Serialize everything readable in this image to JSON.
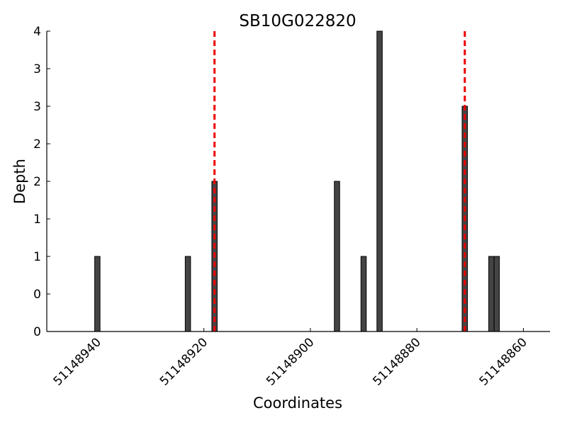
{
  "chart_data": {
    "type": "bar",
    "title": "SB10G022820",
    "x_label": "Coordinates",
    "y_label": "Depth",
    "x": [
      51148940,
      51148923,
      51148918,
      51148895,
      51148890,
      51148887,
      51148871,
      51148866,
      51148865
    ],
    "values": [
      1,
      1,
      2,
      2,
      1,
      4,
      3,
      1,
      1
    ],
    "color": "#444444",
    "xlim": [
      51148949.5,
      51148855
    ],
    "xticks": [
      51148940,
      51148920,
      51148900,
      51148880,
      51148860
    ],
    "ylim": [
      0,
      4
    ],
    "yticks": [
      0,
      {
        "value": 0.5,
        "label": "0"
      },
      1,
      {
        "value": 1.5,
        "label": "1"
      },
      2,
      {
        "value": 2.5,
        "label": "2"
      },
      3,
      {
        "value": 3.5,
        "label": "3"
      },
      4
    ],
    "vlines": [
      51148918,
      51148871
    ],
    "vline_color": "#ee0000"
  }
}
